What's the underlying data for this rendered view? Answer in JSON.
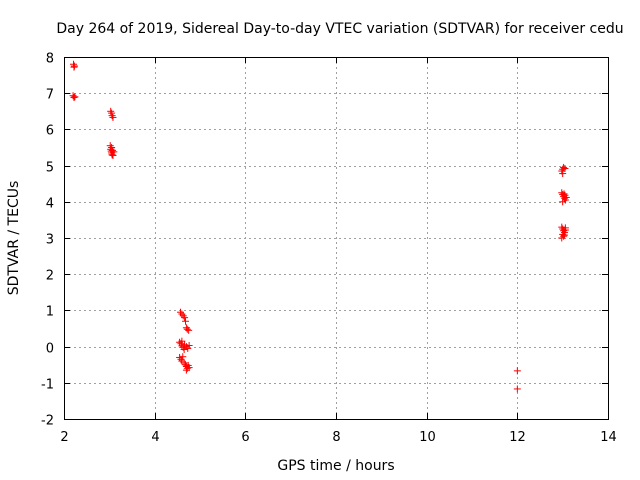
{
  "chart_data": {
    "type": "scatter",
    "title": "Day 264 of 2019, Sidereal Day-to-day VTEC variation (SDTVAR) for receiver cedu",
    "xlabel": "GPS time / hours",
    "ylabel": "SDTVAR / TECUs",
    "xlim": [
      2,
      14
    ],
    "ylim": [
      -2,
      8
    ],
    "xticks": [
      "2",
      "4",
      "6",
      "8",
      "10",
      "12",
      "14"
    ],
    "yticks": [
      "-2",
      "-1",
      "0",
      "1",
      "2",
      "3",
      "4",
      "5",
      "6",
      "7",
      "8"
    ],
    "grid": true,
    "marker": "plus",
    "color": "#ff0000",
    "series": [
      {
        "name": "SDTVAR",
        "points": [
          [
            2.21,
            7.8
          ],
          [
            2.22,
            7.72
          ],
          [
            2.23,
            7.75
          ],
          [
            2.2,
            6.93
          ],
          [
            2.22,
            6.88
          ],
          [
            2.24,
            6.9
          ],
          [
            3.03,
            6.5
          ],
          [
            3.05,
            6.45
          ],
          [
            3.06,
            6.38
          ],
          [
            3.08,
            6.33
          ],
          [
            3.02,
            5.55
          ],
          [
            3.03,
            5.45
          ],
          [
            3.04,
            5.4
          ],
          [
            3.05,
            5.35
          ],
          [
            3.06,
            5.3
          ],
          [
            3.07,
            5.42
          ],
          [
            3.08,
            5.28
          ],
          [
            3.1,
            5.38
          ],
          [
            3.05,
            5.5
          ],
          [
            4.57,
            0.95
          ],
          [
            4.6,
            0.9
          ],
          [
            4.63,
            0.85
          ],
          [
            4.66,
            0.8
          ],
          [
            4.68,
            0.7
          ],
          [
            4.7,
            0.52
          ],
          [
            4.72,
            0.48
          ],
          [
            4.75,
            0.45
          ],
          [
            4.55,
            0.12
          ],
          [
            4.58,
            0.08
          ],
          [
            4.6,
            0.02
          ],
          [
            4.63,
            -0.02
          ],
          [
            4.66,
            0.05
          ],
          [
            4.7,
            0.0
          ],
          [
            4.73,
            -0.05
          ],
          [
            4.76,
            0.03
          ],
          [
            4.6,
            0.15
          ],
          [
            4.65,
            -0.08
          ],
          [
            4.55,
            -0.3
          ],
          [
            4.58,
            -0.35
          ],
          [
            4.6,
            -0.4
          ],
          [
            4.62,
            -0.28
          ],
          [
            4.65,
            -0.45
          ],
          [
            4.68,
            -0.5
          ],
          [
            4.7,
            -0.55
          ],
          [
            4.72,
            -0.6
          ],
          [
            4.74,
            -0.52
          ],
          [
            4.76,
            -0.58
          ],
          [
            4.7,
            -0.65
          ],
          [
            12.0,
            -0.67
          ],
          [
            12.0,
            -1.17
          ],
          [
            12.98,
            4.85
          ],
          [
            13.0,
            4.9
          ],
          [
            13.02,
            4.95
          ],
          [
            13.05,
            4.92
          ],
          [
            13.0,
            4.78
          ],
          [
            12.98,
            4.25
          ],
          [
            13.0,
            4.2
          ],
          [
            13.02,
            4.15
          ],
          [
            13.04,
            4.1
          ],
          [
            13.06,
            4.05
          ],
          [
            13.08,
            4.12
          ],
          [
            13.0,
            4.0
          ],
          [
            13.03,
            4.22
          ],
          [
            13.05,
            4.18
          ],
          [
            12.98,
            3.3
          ],
          [
            13.0,
            3.25
          ],
          [
            13.02,
            3.2
          ],
          [
            13.04,
            3.15
          ],
          [
            13.06,
            3.22
          ],
          [
            13.0,
            3.1
          ],
          [
            13.02,
            3.05
          ],
          [
            12.98,
            3.0
          ],
          [
            13.04,
            3.08
          ],
          [
            13.06,
            3.28
          ]
        ]
      }
    ]
  }
}
